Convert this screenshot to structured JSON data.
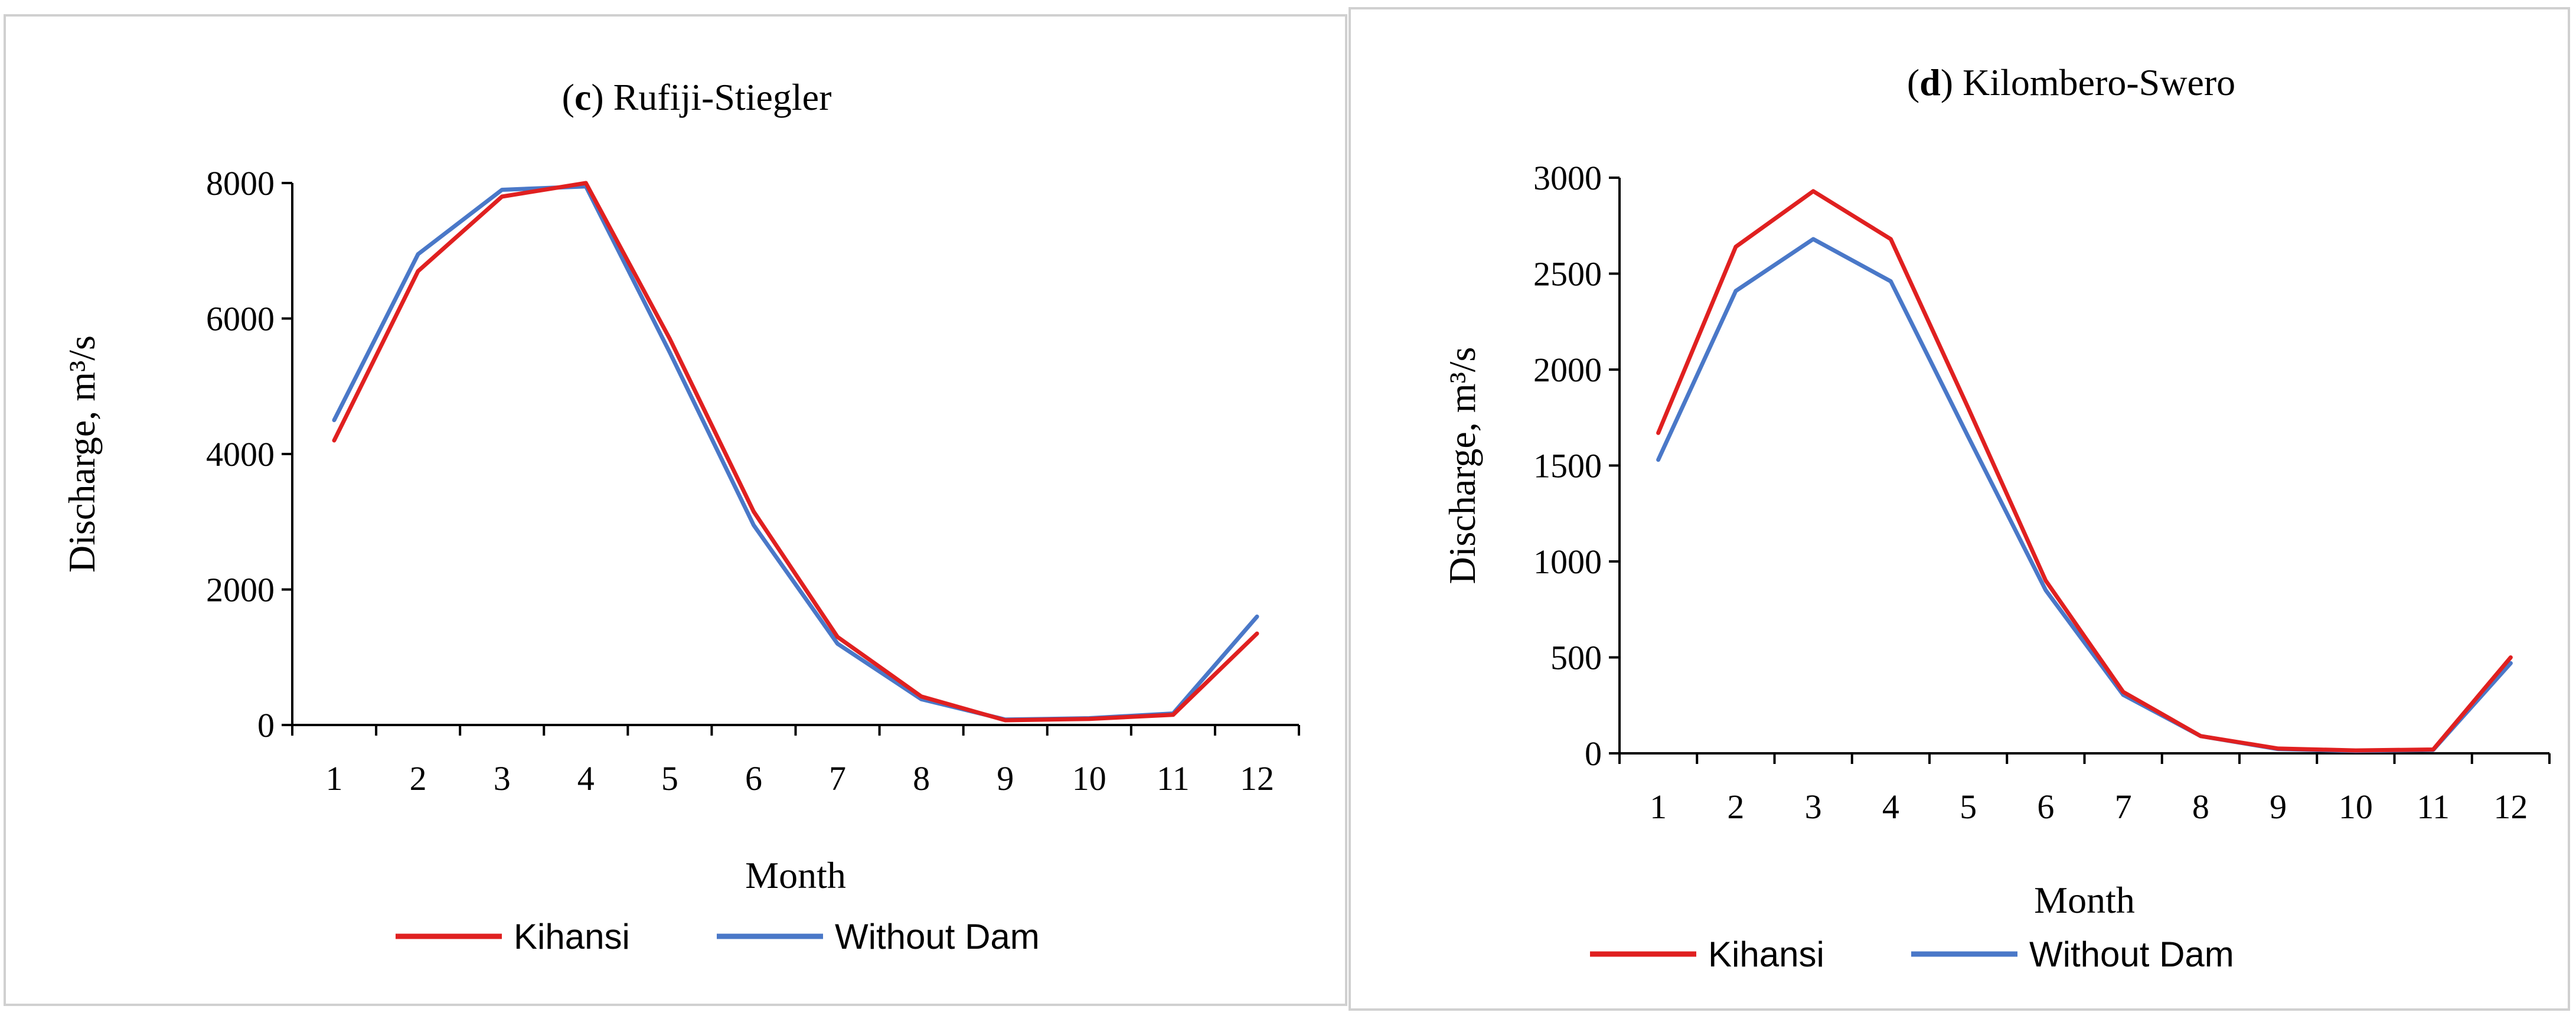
{
  "chart_data": [
    {
      "type": "line",
      "panel_letter": "c",
      "title": "Rufiji-Stiegler",
      "xlabel": "Month",
      "ylabel": "Discharge, m³/s",
      "x": [
        1,
        2,
        3,
        4,
        5,
        6,
        7,
        8,
        9,
        10,
        11,
        12
      ],
      "ylim": [
        0,
        8000
      ],
      "yticks": [
        0,
        2000,
        4000,
        6000,
        8000
      ],
      "series": [
        {
          "name": "Kihansi",
          "color": "#e02020",
          "values": [
            4200,
            6700,
            7800,
            8000,
            5700,
            3150,
            1300,
            420,
            70,
            90,
            150,
            1350
          ]
        },
        {
          "name": "Without Dam",
          "color": "#4a78c8",
          "values": [
            4500,
            6950,
            7900,
            7950,
            5500,
            2950,
            1200,
            380,
            80,
            100,
            170,
            1600
          ]
        }
      ],
      "legend": "bottom"
    },
    {
      "type": "line",
      "panel_letter": "d",
      "title": "Kilombero-Swero",
      "xlabel": "Month",
      "ylabel": "Discharge, m³/s",
      "x": [
        1,
        2,
        3,
        4,
        5,
        6,
        7,
        8,
        9,
        10,
        11,
        12
      ],
      "ylim": [
        0,
        3000
      ],
      "yticks": [
        0,
        500,
        1000,
        1500,
        2000,
        2500,
        3000
      ],
      "series": [
        {
          "name": "Kihansi",
          "color": "#e02020",
          "values": [
            1670,
            2640,
            2930,
            2680,
            1800,
            900,
            320,
            90,
            25,
            15,
            20,
            500
          ]
        },
        {
          "name": "Without Dam",
          "color": "#4a78c8",
          "values": [
            1530,
            2410,
            2680,
            2460,
            1650,
            850,
            305,
            90,
            22,
            12,
            18,
            470
          ]
        }
      ],
      "legend": "bottom"
    }
  ]
}
